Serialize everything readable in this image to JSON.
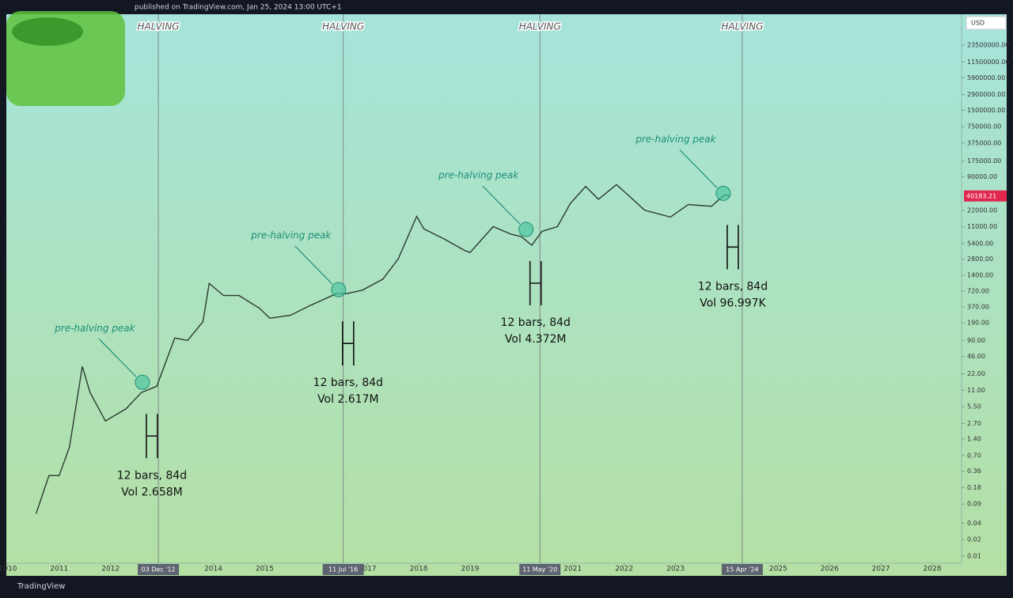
{
  "header": {
    "text": "published on TradingView.com, Jan 25, 2024 13:00 UTC+1",
    "currency": "USD"
  },
  "footer": {
    "brand": "TradingView"
  },
  "chart_data": {
    "type": "line",
    "log_scale": true,
    "grid": false,
    "color": "#2a3a30",
    "x": [
      2010.55,
      2010.8,
      2011.0,
      2011.2,
      2011.45,
      2011.6,
      2011.9,
      2012.3,
      2012.6,
      2012.9,
      2013.25,
      2013.5,
      2013.8,
      2013.92,
      2014.2,
      2014.5,
      2014.9,
      2015.1,
      2015.5,
      2015.9,
      2016.4,
      2016.6,
      2016.9,
      2017.3,
      2017.6,
      2017.96,
      2018.1,
      2018.5,
      2018.9,
      2019.0,
      2019.45,
      2019.8,
      2020.0,
      2020.2,
      2020.4,
      2020.7,
      2020.95,
      2021.25,
      2021.5,
      2021.85,
      2022.1,
      2022.4,
      2022.9,
      2023.25,
      2023.7,
      2023.95,
      2024.07
    ],
    "values": [
      0.06,
      0.3,
      0.3,
      1,
      30,
      10,
      3,
      5,
      10,
      13,
      100,
      90,
      200,
      1000,
      600,
      600,
      350,
      230,
      260,
      400,
      650,
      650,
      750,
      1200,
      2800,
      17000,
      10000,
      6500,
      4000,
      3700,
      11000,
      8000,
      7200,
      5000,
      9000,
      11000,
      29000,
      60000,
      35000,
      65000,
      40000,
      22000,
      16500,
      28000,
      26000,
      42000,
      40183.21
    ],
    "xlim": [
      2009.97,
      2028.57
    ],
    "xticks": [
      2010,
      2011,
      2012,
      2014,
      2015,
      2017,
      2018,
      2019,
      2021,
      2022,
      2023,
      2025,
      2026,
      2027,
      2028
    ],
    "ylim": [
      0.0074,
      86500000
    ],
    "yticks": [
      {
        "value": 23500000,
        "label": "23500000.00"
      },
      {
        "value": 11500000,
        "label": "11500000.00"
      },
      {
        "value": 5900000,
        "label": "5900000.00"
      },
      {
        "value": 2900000,
        "label": "2900000.00"
      },
      {
        "value": 1500000,
        "label": "1500000.00"
      },
      {
        "value": 750000,
        "label": "750000.00"
      },
      {
        "value": 375000,
        "label": "375000.00"
      },
      {
        "value": 175000,
        "label": "175000.00"
      },
      {
        "value": 90000,
        "label": "90000.00"
      },
      {
        "value": 22000,
        "label": "22000.00"
      },
      {
        "value": 11000,
        "label": "11000.00"
      },
      {
        "value": 5400,
        "label": "5400.00"
      },
      {
        "value": 2800,
        "label": "2800.00"
      },
      {
        "value": 1400,
        "label": "1400.00"
      },
      {
        "value": 720,
        "label": "720.00"
      },
      {
        "value": 370,
        "label": "370.00"
      },
      {
        "value": 190,
        "label": "190.00"
      },
      {
        "value": 90,
        "label": "90.00"
      },
      {
        "value": 46,
        "label": "46.00"
      },
      {
        "value": 22,
        "label": "22.00"
      },
      {
        "value": 11,
        "label": "11.00"
      },
      {
        "value": 5.5,
        "label": "5.50"
      },
      {
        "value": 2.7,
        "label": "2.70"
      },
      {
        "value": 1.4,
        "label": "1.40"
      },
      {
        "value": 0.7,
        "label": "0.70"
      },
      {
        "value": 0.36,
        "label": "0.36"
      },
      {
        "value": 0.18,
        "label": "0.18"
      },
      {
        "value": 0.09,
        "label": "0.09"
      },
      {
        "value": 0.04,
        "label": "0.04"
      },
      {
        "value": 0.02,
        "label": "0.02"
      },
      {
        "value": 0.01,
        "label": "0.01"
      }
    ],
    "halvings": [
      {
        "x": 2012.93,
        "label": "HALVING",
        "date": "03 Dec '12"
      },
      {
        "x": 2016.53,
        "label": "HALVING",
        "date": "11 Jul '16"
      },
      {
        "x": 2020.36,
        "label": "HALVING",
        "date": "11 May '20"
      },
      {
        "x": 2024.3,
        "label": "HALVING",
        "date": "15 Apr '24"
      }
    ],
    "peaks": [
      {
        "x": 2012.62,
        "y": 15.4,
        "label": "pre-halving peak",
        "measure": "12 bars, 84d",
        "volume": "Vol 2.658M"
      },
      {
        "x": 2016.44,
        "y": 770,
        "label": "pre-halving peak",
        "measure": "12 bars, 84d",
        "volume": "Vol 2.617M"
      },
      {
        "x": 2020.09,
        "y": 9800,
        "label": "pre-halving peak",
        "measure": "12 bars, 84d",
        "volume": "Vol 4.372M"
      },
      {
        "x": 2023.93,
        "y": 45000,
        "label": "pre-halving peak",
        "measure": "12 bars, 84d",
        "volume": "Vol 96.997K"
      }
    ]
  }
}
